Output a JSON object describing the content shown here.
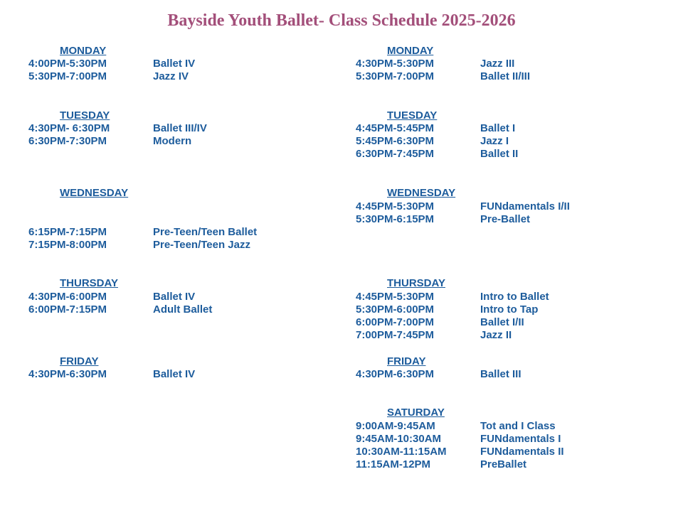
{
  "title": "Bayside Youth Ballet- Class Schedule 2025-2026",
  "left": {
    "monday": {
      "label": "MONDAY",
      "rows": [
        {
          "time": "4:00PM-5:30PM",
          "cls": "Ballet IV"
        },
        {
          "time": "5:30PM-7:00PM",
          "cls": "Jazz IV"
        }
      ]
    },
    "tuesday": {
      "label": "TUESDAY",
      "rows": [
        {
          "time": "4:30PM- 6:30PM",
          "cls": "Ballet III/IV"
        },
        {
          "time": "6:30PM-7:30PM",
          "cls": "Modern"
        }
      ]
    },
    "wednesday": {
      "label": "WEDNESDAY",
      "rows": [
        {
          "time": "6:15PM-7:15PM",
          "cls": "Pre-Teen/Teen Ballet"
        },
        {
          "time": "7:15PM-8:00PM",
          "cls": "Pre-Teen/Teen Jazz"
        }
      ]
    },
    "thursday": {
      "label": "THURSDAY",
      "rows": [
        {
          "time": "4:30PM-6:00PM",
          "cls": "Ballet IV"
        },
        {
          "time": "6:00PM-7:15PM",
          "cls": "Adult Ballet"
        }
      ]
    },
    "friday": {
      "label": "FRIDAY",
      "rows": [
        {
          "time": "4:30PM-6:30PM",
          "cls": "Ballet IV"
        }
      ]
    }
  },
  "right": {
    "monday": {
      "label": "MONDAY",
      "rows": [
        {
          "time": "4:30PM-5:30PM",
          "cls": "Jazz III"
        },
        {
          "time": "5:30PM-7:00PM",
          "cls": "Ballet II/III"
        }
      ]
    },
    "tuesday": {
      "label": "TUESDAY",
      "rows": [
        {
          "time": "4:45PM-5:45PM",
          "cls": "Ballet I"
        },
        {
          "time": "5:45PM-6:30PM",
          "cls": "Jazz I"
        },
        {
          "time": "6:30PM-7:45PM",
          "cls": "Ballet II"
        }
      ]
    },
    "wednesday": {
      "label": "WEDNESDAY",
      "rows": [
        {
          "time": "4:45PM-5:30PM",
          "cls": "FUNdamentals I/II"
        },
        {
          "time": "5:30PM-6:15PM",
          "cls": "Pre-Ballet"
        }
      ]
    },
    "thursday": {
      "label": "THURSDAY",
      "rows": [
        {
          "time": "4:45PM-5:30PM",
          "cls": "Intro to Ballet"
        },
        {
          "time": "5:30PM-6:00PM",
          "cls": "Intro to Tap"
        },
        {
          "time": "6:00PM-7:00PM",
          "cls": "Ballet I/II"
        },
        {
          "time": "7:00PM-7:45PM",
          "cls": "Jazz II"
        }
      ]
    },
    "friday": {
      "label": "FRIDAY",
      "rows": [
        {
          "time": "4:30PM-6:30PM",
          "cls": "Ballet III"
        }
      ]
    },
    "saturday": {
      "label": "SATURDAY",
      "rows": [
        {
          "time": "9:00AM-9:45AM",
          "cls": "Tot and I Class"
        },
        {
          "time": "9:45AM-10:30AM",
          "cls": "FUNdamentals I"
        },
        {
          "time": "10:30AM-11:15AM",
          "cls": "FUNdamentals II"
        },
        {
          "time": "11:15AM-12PM",
          "cls": "PreBallet"
        }
      ]
    }
  }
}
